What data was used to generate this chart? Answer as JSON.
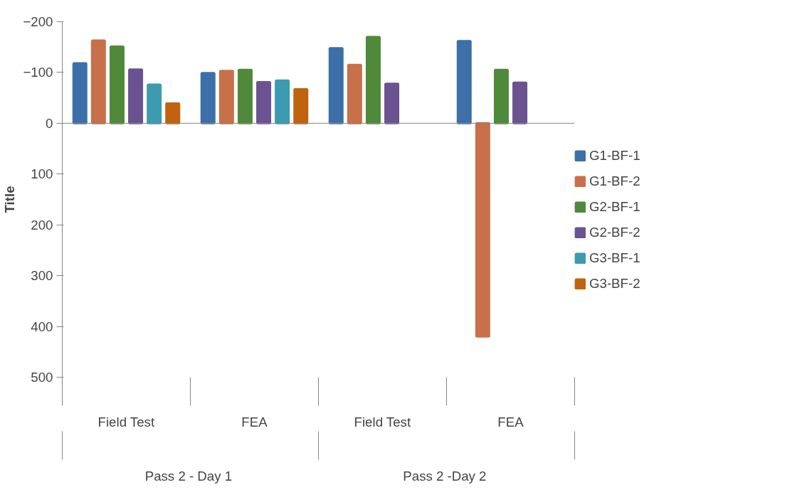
{
  "chart_data": {
    "type": "bar",
    "ylabel": "Title",
    "categories": [
      "Field Test",
      "FEA",
      "Field Test",
      "FEA"
    ],
    "annotations": [
      "Pass 2  - Day 1",
      "Pass 2  -Day 2"
    ],
    "series": [
      {
        "name": "G1-BF-1",
        "color": "#3d6fa8",
        "values": [
          -118,
          -99,
          -148,
          -162
        ]
      },
      {
        "name": "G1-BF-2",
        "color": "#c8704a",
        "values": [
          -163,
          -103,
          -115,
          420
        ]
      },
      {
        "name": "G2-BF-1",
        "color": "#4f8a3a",
        "values": [
          -151,
          -105,
          -170,
          -105
        ]
      },
      {
        "name": "G2-BF-2",
        "color": "#6a5390",
        "values": [
          -106,
          -81,
          -78,
          -80
        ]
      },
      {
        "name": "G3-BF-1",
        "color": "#3c9bb0",
        "values": [
          -76,
          -84,
          null,
          null
        ]
      },
      {
        "name": "G3-BF-2",
        "color": "#c0620f",
        "values": [
          -39,
          -67,
          null,
          null
        ]
      }
    ],
    "ylim": [
      500,
      -200
    ],
    "yticks": [
      -200,
      -100,
      0,
      100,
      200,
      300,
      400,
      500
    ],
    "ref_lines": [
      {
        "axis": "y",
        "value": 0,
        "color": "#868686"
      }
    ],
    "grid": false,
    "legend": "right"
  }
}
